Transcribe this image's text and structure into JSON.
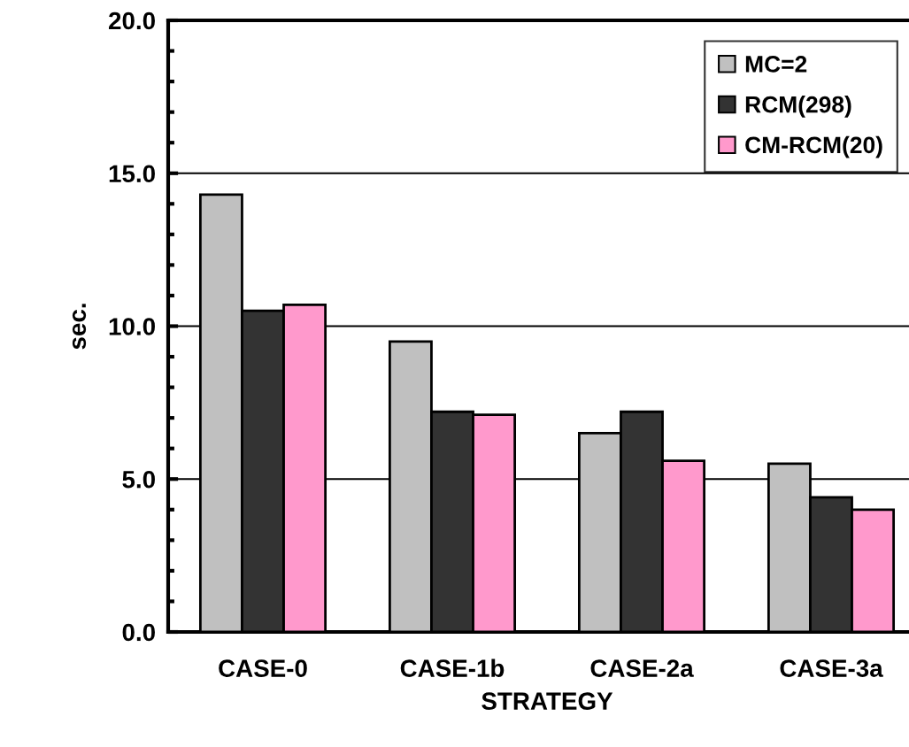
{
  "chart_data": {
    "type": "bar",
    "xlabel": "STRATEGY",
    "ylabel": "sec.",
    "categories": [
      "CASE-0",
      "CASE-1b",
      "CASE-2a",
      "CASE-3a"
    ],
    "series": [
      {
        "name": "MC=2",
        "color": "#c0c0c0",
        "values": [
          14.3,
          9.5,
          6.5,
          5.5
        ]
      },
      {
        "name": "RCM(298)",
        "color": "#333333",
        "values": [
          10.5,
          7.2,
          7.2,
          4.4
        ]
      },
      {
        "name": "CM-RCM(20)",
        "color": "#ff99cc",
        "values": [
          10.7,
          7.1,
          5.6,
          4.0
        ]
      }
    ],
    "ylim": [
      0,
      20
    ],
    "yticks": [
      {
        "value": 0,
        "label": "0.0"
      },
      {
        "value": 5,
        "label": "5.0"
      },
      {
        "value": 10,
        "label": "10.0"
      },
      {
        "value": 15,
        "label": "15.0"
      },
      {
        "value": 20,
        "label": "20.0"
      }
    ],
    "grid": "y",
    "legend": "top right"
  }
}
